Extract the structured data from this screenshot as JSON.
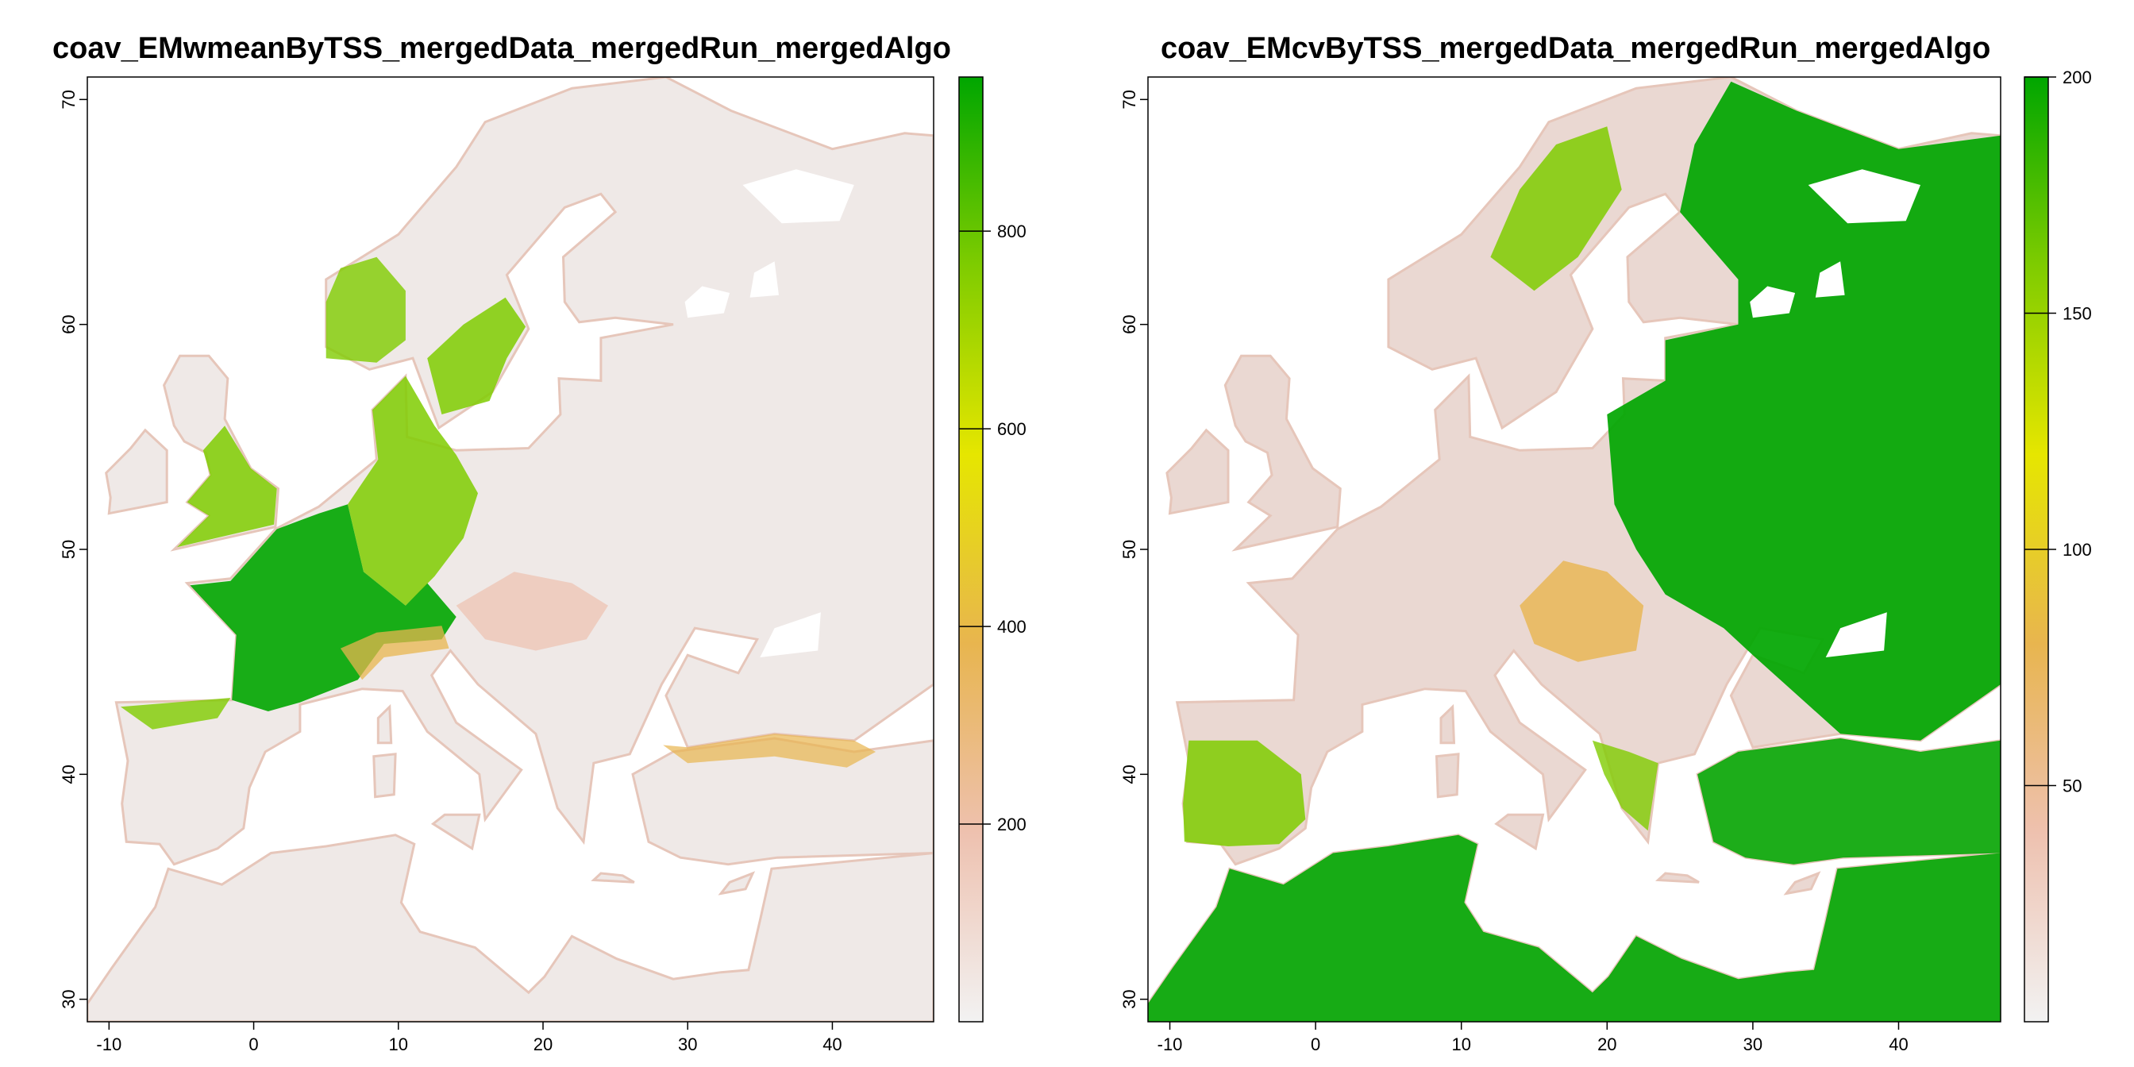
{
  "panels": [
    {
      "title": "coav_EMwmeanByTSS_mergedData_mergedRun_mergedAlgo",
      "legend": {
        "min": 0,
        "max": 956,
        "ticks": [
          200,
          400,
          600,
          800
        ]
      }
    },
    {
      "title": "coav_EMcvByTSS_mergedData_mergedRun_mergedAlgo",
      "legend": {
        "min": 0,
        "max": 200,
        "ticks": [
          50,
          100,
          150,
          200
        ]
      }
    }
  ],
  "axes": {
    "x_ticks": [
      -10,
      0,
      10,
      20,
      30,
      40
    ],
    "y_ticks": [
      30,
      40,
      50,
      60,
      70
    ],
    "xlim": [
      -11.5,
      47
    ],
    "ylim": [
      29,
      71
    ]
  },
  "colors": {
    "ramp": [
      "#f2f2f2",
      "#eec1af",
      "#e8b54f",
      "#e6e600",
      "#7fcc00",
      "#00a600"
    ],
    "background": "#f2f2f2",
    "sea": "#ffffff"
  }
}
